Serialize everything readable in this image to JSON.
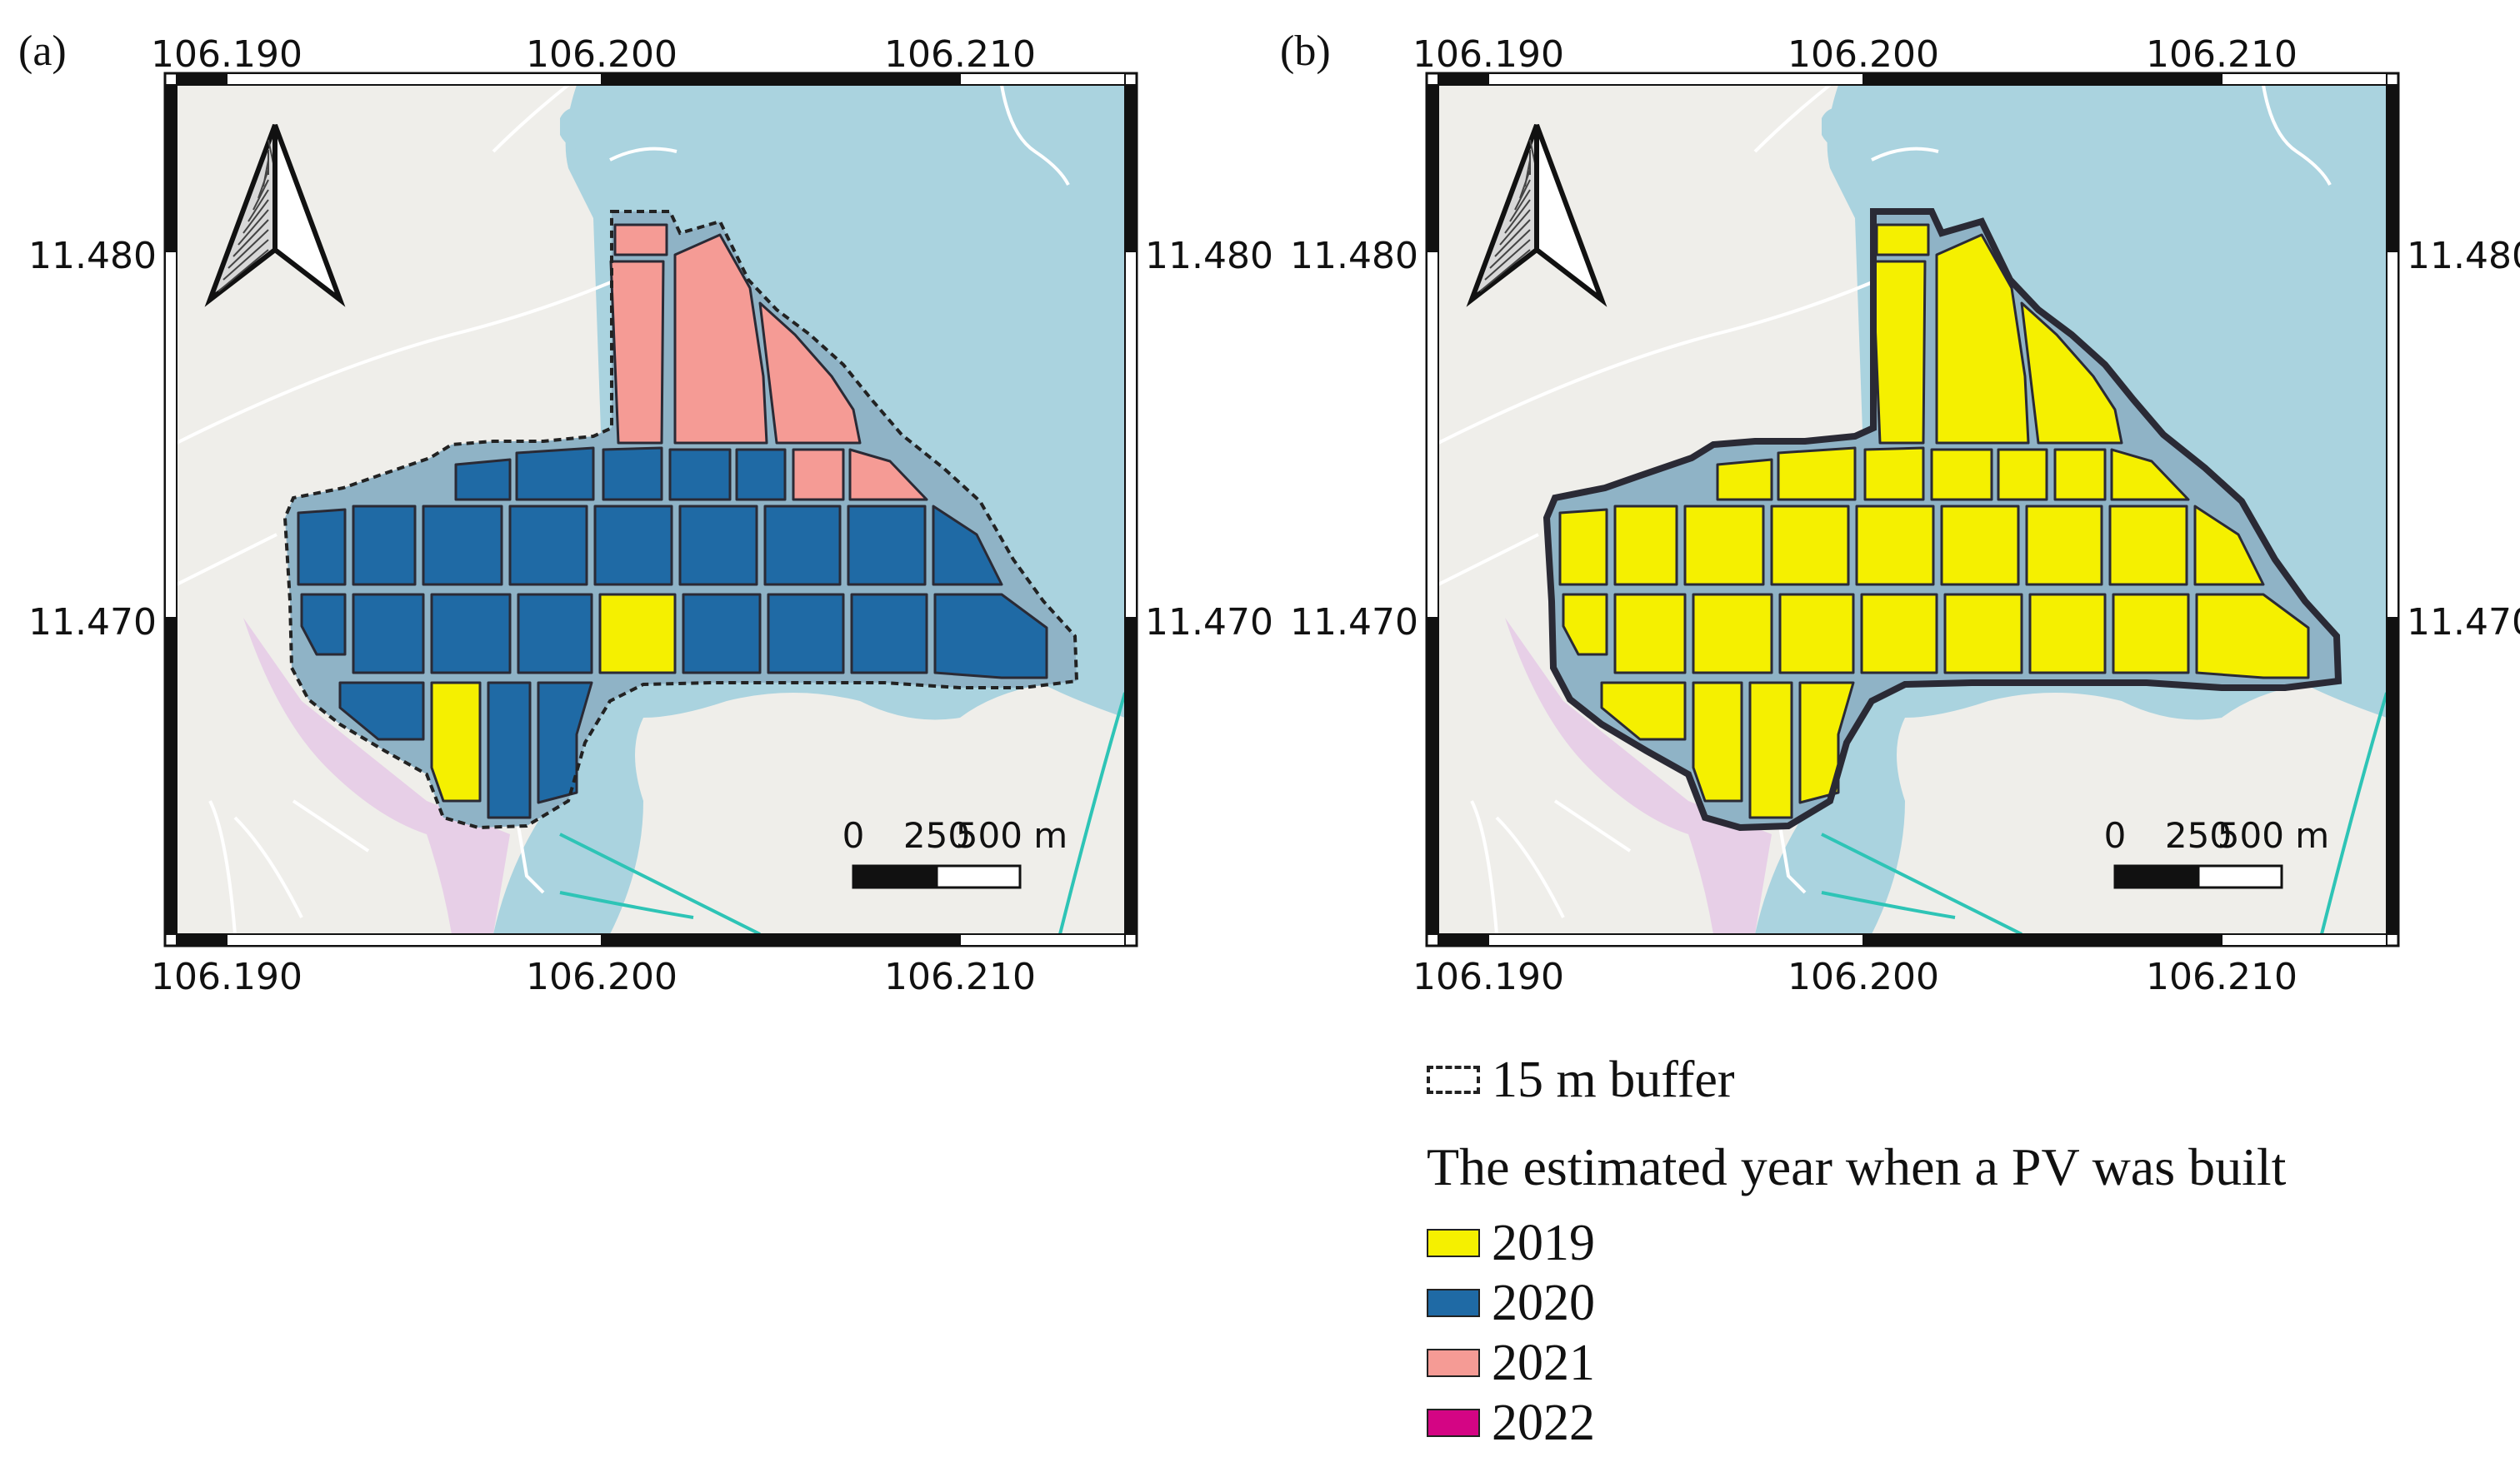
{
  "panels": [
    {
      "label": "(a)",
      "top_ticks": [
        "106.190",
        "106.200",
        "106.210"
      ],
      "bottom_ticks": [
        "106.190",
        "106.200",
        "106.210"
      ],
      "left_ticks": [
        "11.480",
        "11.470"
      ],
      "right_ticks": [
        "11.480",
        "11.470"
      ],
      "scale_labels": [
        "0",
        "250",
        "500 m"
      ],
      "fill_mode": "by_year",
      "outline_style": "dashed"
    },
    {
      "label": "(b)",
      "top_ticks": [
        "106.190",
        "106.200",
        "106.210"
      ],
      "bottom_ticks": [
        "106.190",
        "106.200",
        "106.210"
      ],
      "left_ticks": [
        "11.480",
        "11.470"
      ],
      "right_ticks": [
        "11.480",
        "11.470"
      ],
      "scale_labels": [
        "0",
        "250",
        "500 m"
      ],
      "fill_mode": "all_2019",
      "outline_style": "solid"
    }
  ],
  "legend": {
    "buffer_label": "15 m buffer",
    "title": "The estimated year when a PV was built",
    "items": [
      {
        "label": "2019",
        "color": "#f5f000"
      },
      {
        "label": "2020",
        "color": "#1f6aa5"
      },
      {
        "label": "2021",
        "color": "#f59b95"
      },
      {
        "label": "2022",
        "color": "#d40584"
      }
    ]
  },
  "colors": {
    "land": "#efeeea",
    "water": "#aad3df",
    "wetland": "#e5c9e6",
    "road": "#ffffff",
    "river_line": "#2ec4b6",
    "outline": "#2a2a35",
    "gap": "#8fb3c6"
  }
}
